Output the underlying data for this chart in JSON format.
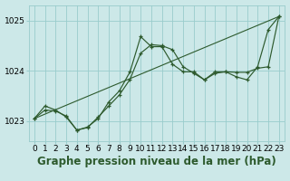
{
  "background_color": "#cce8e8",
  "grid_color": "#99cccc",
  "line_color": "#2d5a2d",
  "xlabel": "Graphe pression niveau de la mer (hPa)",
  "ylim": [
    1022.6,
    1025.3
  ],
  "xlim": [
    -0.5,
    23.5
  ],
  "yticks": [
    1023,
    1024,
    1025
  ],
  "xticks": [
    0,
    1,
    2,
    3,
    4,
    5,
    6,
    7,
    8,
    9,
    10,
    11,
    12,
    13,
    14,
    15,
    16,
    17,
    18,
    19,
    20,
    21,
    22,
    23
  ],
  "line1_x": [
    0,
    1,
    2,
    3,
    4,
    5,
    6,
    7,
    8,
    9,
    10,
    11,
    12,
    13,
    14,
    15,
    16,
    17,
    18,
    19,
    20,
    21,
    22,
    23
  ],
  "line1_y": [
    1023.05,
    1023.3,
    1023.22,
    1023.08,
    1022.82,
    1022.87,
    1023.08,
    1023.3,
    1023.52,
    1023.83,
    1024.35,
    1024.52,
    1024.5,
    1024.42,
    1024.08,
    1023.95,
    1023.82,
    1023.95,
    1023.98,
    1023.97,
    1023.97,
    1024.05,
    1024.08,
    1025.08
  ],
  "line2_x": [
    0,
    1,
    2,
    3,
    4,
    5,
    6,
    7,
    8,
    9,
    10,
    11,
    12,
    13,
    14,
    15,
    16,
    17,
    18,
    19,
    20,
    21,
    22,
    23
  ],
  "line2_y": [
    1023.05,
    1023.22,
    1023.2,
    1023.1,
    1022.82,
    1022.88,
    1023.05,
    1023.38,
    1023.6,
    1023.98,
    1024.68,
    1024.48,
    1024.48,
    1024.13,
    1023.98,
    1023.98,
    1023.82,
    1023.98,
    1023.98,
    1023.88,
    1023.82,
    1024.08,
    1024.82,
    1025.08
  ],
  "line3_x": [
    0,
    23
  ],
  "line3_y": [
    1023.05,
    1025.08
  ],
  "title_fontsize": 8.5,
  "tick_fontsize": 6.5
}
